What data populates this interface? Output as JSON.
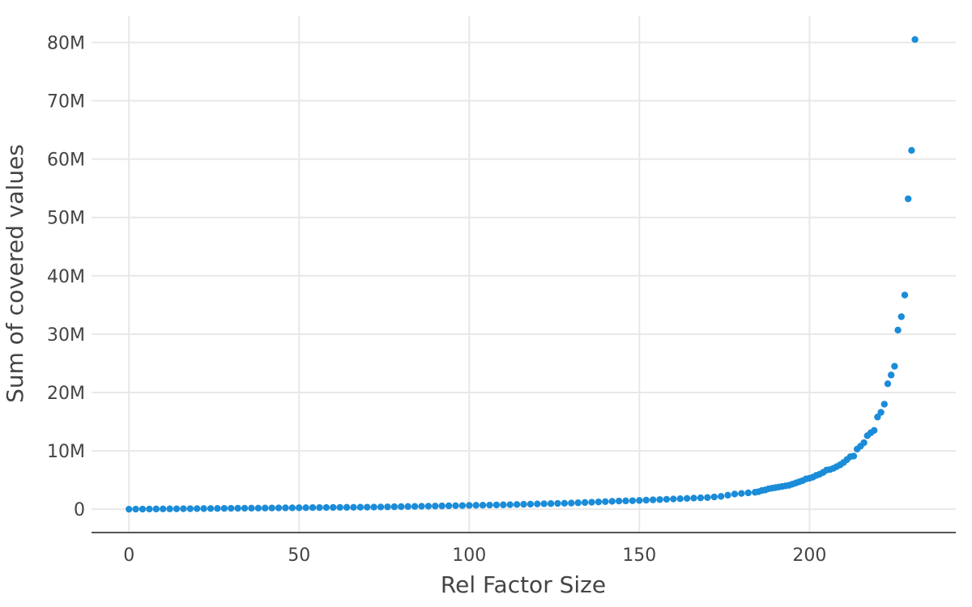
{
  "chart_data": {
    "type": "scatter",
    "title": "",
    "xlabel": "Rel Factor Size",
    "ylabel": "Sum of covered values",
    "xlim": [
      -11,
      243
    ],
    "ylim": [
      -4000000,
      84500000
    ],
    "x_ticks": [
      {
        "value": 0,
        "label": "0"
      },
      {
        "value": 50,
        "label": "50"
      },
      {
        "value": 100,
        "label": "100"
      },
      {
        "value": 150,
        "label": "150"
      },
      {
        "value": 200,
        "label": "200"
      }
    ],
    "y_ticks": [
      {
        "value": 0,
        "label": "0"
      },
      {
        "value": 10000000,
        "label": "10M"
      },
      {
        "value": 20000000,
        "label": "20M"
      },
      {
        "value": 30000000,
        "label": "30M"
      },
      {
        "value": 40000000,
        "label": "40M"
      },
      {
        "value": 50000000,
        "label": "50M"
      },
      {
        "value": 60000000,
        "label": "60M"
      },
      {
        "value": 70000000,
        "label": "70M"
      },
      {
        "value": 80000000,
        "label": "80M"
      }
    ],
    "grid": true,
    "legend": "none",
    "series": [
      {
        "color": "#1a8cd8",
        "points": [
          [
            0,
            0
          ],
          [
            2,
            10000
          ],
          [
            4,
            20000
          ],
          [
            6,
            30000
          ],
          [
            8,
            40000
          ],
          [
            10,
            50000
          ],
          [
            12,
            60000
          ],
          [
            14,
            70000
          ],
          [
            16,
            80000
          ],
          [
            18,
            90000
          ],
          [
            20,
            100000
          ],
          [
            22,
            110000
          ],
          [
            24,
            120000
          ],
          [
            26,
            130000
          ],
          [
            28,
            140000
          ],
          [
            30,
            150000
          ],
          [
            32,
            160000
          ],
          [
            34,
            170000
          ],
          [
            36,
            180000
          ],
          [
            38,
            190000
          ],
          [
            40,
            200000
          ],
          [
            42,
            210000
          ],
          [
            44,
            220000
          ],
          [
            46,
            230000
          ],
          [
            48,
            240000
          ],
          [
            50,
            250000
          ],
          [
            52,
            260000
          ],
          [
            54,
            270000
          ],
          [
            56,
            280000
          ],
          [
            58,
            290000
          ],
          [
            60,
            300000
          ],
          [
            62,
            310000
          ],
          [
            64,
            320000
          ],
          [
            66,
            330000
          ],
          [
            68,
            340000
          ],
          [
            70,
            350000
          ],
          [
            72,
            360000
          ],
          [
            74,
            380000
          ],
          [
            76,
            400000
          ],
          [
            78,
            420000
          ],
          [
            80,
            440000
          ],
          [
            82,
            460000
          ],
          [
            84,
            480000
          ],
          [
            86,
            500000
          ],
          [
            88,
            520000
          ],
          [
            90,
            540000
          ],
          [
            92,
            560000
          ],
          [
            94,
            580000
          ],
          [
            96,
            600000
          ],
          [
            98,
            620000
          ],
          [
            100,
            650000
          ],
          [
            102,
            670000
          ],
          [
            104,
            690000
          ],
          [
            106,
            710000
          ],
          [
            108,
            730000
          ],
          [
            110,
            750000
          ],
          [
            112,
            780000
          ],
          [
            114,
            810000
          ],
          [
            116,
            840000
          ],
          [
            118,
            870000
          ],
          [
            120,
            900000
          ],
          [
            122,
            930000
          ],
          [
            124,
            960000
          ],
          [
            126,
            990000
          ],
          [
            128,
            1020000
          ],
          [
            130,
            1050000
          ],
          [
            132,
            1100000
          ],
          [
            134,
            1150000
          ],
          [
            136,
            1200000
          ],
          [
            138,
            1250000
          ],
          [
            140,
            1300000
          ],
          [
            142,
            1350000
          ],
          [
            144,
            1400000
          ],
          [
            146,
            1430000
          ],
          [
            148,
            1460000
          ],
          [
            150,
            1500000
          ],
          [
            152,
            1550000
          ],
          [
            154,
            1600000
          ],
          [
            156,
            1650000
          ],
          [
            158,
            1700000
          ],
          [
            160,
            1750000
          ],
          [
            162,
            1800000
          ],
          [
            164,
            1850000
          ],
          [
            166,
            1900000
          ],
          [
            168,
            1950000
          ],
          [
            170,
            2000000
          ],
          [
            172,
            2100000
          ],
          [
            174,
            2200000
          ],
          [
            176,
            2400000
          ],
          [
            178,
            2600000
          ],
          [
            180,
            2700000
          ],
          [
            182,
            2800000
          ],
          [
            184,
            2900000
          ],
          [
            185,
            3000000
          ],
          [
            186,
            3200000
          ],
          [
            187,
            3300000
          ],
          [
            188,
            3500000
          ],
          [
            189,
            3600000
          ],
          [
            190,
            3700000
          ],
          [
            191,
            3800000
          ],
          [
            192,
            3900000
          ],
          [
            193,
            4000000
          ],
          [
            194,
            4100000
          ],
          [
            195,
            4300000
          ],
          [
            196,
            4500000
          ],
          [
            197,
            4700000
          ],
          [
            198,
            4900000
          ],
          [
            199,
            5200000
          ],
          [
            200,
            5300000
          ],
          [
            201,
            5500000
          ],
          [
            202,
            5800000
          ],
          [
            203,
            6000000
          ],
          [
            204,
            6300000
          ],
          [
            205,
            6700000
          ],
          [
            206,
            6800000
          ],
          [
            207,
            7000000
          ],
          [
            208,
            7300000
          ],
          [
            209,
            7600000
          ],
          [
            210,
            8000000
          ],
          [
            211,
            8500000
          ],
          [
            212,
            9000000
          ],
          [
            213,
            9100000
          ],
          [
            214,
            10300000
          ],
          [
            215,
            10800000
          ],
          [
            216,
            11400000
          ],
          [
            217,
            12600000
          ],
          [
            218,
            13100000
          ],
          [
            219,
            13500000
          ],
          [
            220,
            15800000
          ],
          [
            221,
            16600000
          ],
          [
            222,
            18000000
          ],
          [
            223,
            21500000
          ],
          [
            224,
            23000000
          ],
          [
            225,
            24500000
          ],
          [
            226,
            30700000
          ],
          [
            227,
            33000000
          ],
          [
            228,
            36700000
          ],
          [
            229,
            53200000
          ],
          [
            230,
            61500000
          ],
          [
            231,
            80500000
          ]
        ]
      }
    ]
  }
}
